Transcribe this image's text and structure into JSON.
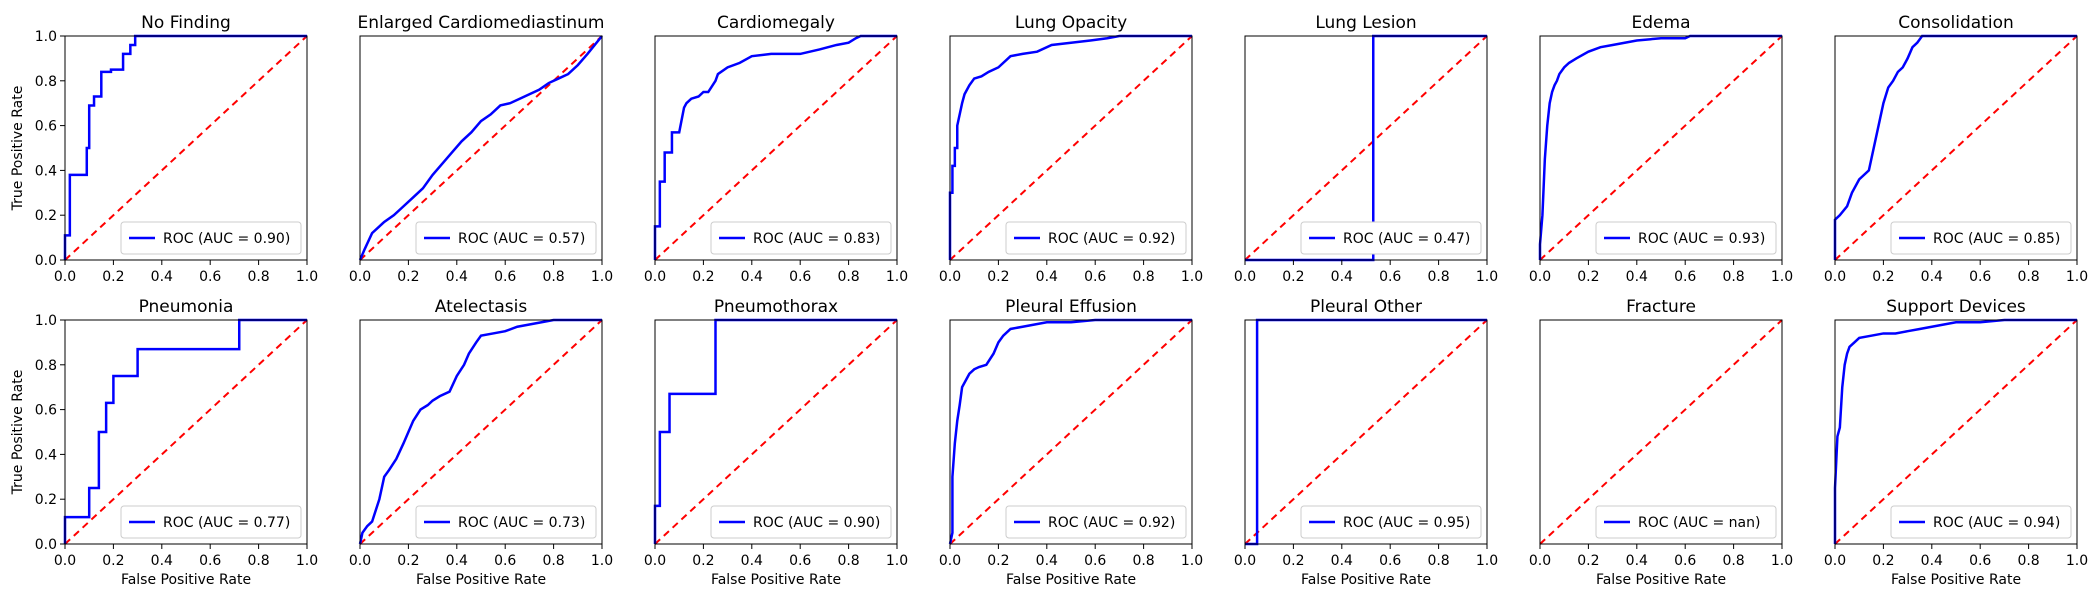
{
  "figure": {
    "x_label": "False Positive Rate",
    "y_label": "True Positive Rate",
    "x_ticks": [
      "0.0",
      "0.2",
      "0.4",
      "0.6",
      "0.8",
      "1.0"
    ],
    "y_ticks": [
      "0.0",
      "0.2",
      "0.4",
      "0.6",
      "0.8",
      "1.0"
    ],
    "roc_color": "#0000ff",
    "diagonal_color": "#ff0000",
    "legend_location": "lower right"
  },
  "chart_data": [
    {
      "type": "line",
      "title": "No Finding",
      "legend": "ROC (AUC = 0.90)",
      "xlim": [
        0,
        1
      ],
      "ylim": [
        0,
        1
      ],
      "x": [
        0,
        0,
        0.02,
        0.02,
        0.05,
        0.05,
        0.09,
        0.09,
        0.1,
        0.1,
        0.12,
        0.12,
        0.15,
        0.15,
        0.19,
        0.19,
        0.24,
        0.24,
        0.27,
        0.27,
        0.29,
        0.29,
        1.0
      ],
      "y": [
        0,
        0.11,
        0.11,
        0.38,
        0.38,
        0.38,
        0.38,
        0.5,
        0.5,
        0.69,
        0.69,
        0.73,
        0.73,
        0.84,
        0.84,
        0.85,
        0.85,
        0.92,
        0.92,
        0.96,
        0.96,
        1.0,
        1.0
      ]
    },
    {
      "type": "line",
      "title": "Enlarged Cardiomediastinum",
      "legend": "ROC (AUC = 0.57)",
      "xlim": [
        0,
        1
      ],
      "ylim": [
        0,
        1
      ],
      "x": [
        0,
        0.02,
        0.05,
        0.08,
        0.1,
        0.14,
        0.18,
        0.22,
        0.26,
        0.3,
        0.34,
        0.38,
        0.42,
        0.46,
        0.5,
        0.54,
        0.58,
        0.62,
        0.66,
        0.7,
        0.74,
        0.78,
        0.82,
        0.86,
        0.9,
        0.94,
        0.97,
        1.0
      ],
      "y": [
        0,
        0.05,
        0.12,
        0.15,
        0.17,
        0.2,
        0.24,
        0.28,
        0.32,
        0.38,
        0.43,
        0.48,
        0.53,
        0.57,
        0.62,
        0.65,
        0.69,
        0.7,
        0.72,
        0.74,
        0.76,
        0.79,
        0.81,
        0.83,
        0.87,
        0.92,
        0.96,
        1.0
      ]
    },
    {
      "type": "line",
      "title": "Cardiomegaly",
      "legend": "ROC (AUC = 0.83)",
      "xlim": [
        0,
        1
      ],
      "ylim": [
        0,
        1
      ],
      "x": [
        0,
        0,
        0.02,
        0.02,
        0.04,
        0.04,
        0.07,
        0.07,
        0.1,
        0.12,
        0.13,
        0.15,
        0.18,
        0.2,
        0.22,
        0.25,
        0.26,
        0.3,
        0.35,
        0.4,
        0.48,
        0.6,
        0.68,
        0.75,
        0.8,
        0.83,
        0.85,
        1.0
      ],
      "y": [
        0,
        0.15,
        0.15,
        0.35,
        0.35,
        0.48,
        0.48,
        0.57,
        0.57,
        0.68,
        0.7,
        0.72,
        0.73,
        0.75,
        0.75,
        0.8,
        0.83,
        0.86,
        0.88,
        0.91,
        0.92,
        0.92,
        0.94,
        0.96,
        0.97,
        0.99,
        1.0,
        1.0
      ]
    },
    {
      "type": "line",
      "title": "Lung Opacity",
      "legend": "ROC (AUC = 0.92)",
      "xlim": [
        0,
        1
      ],
      "ylim": [
        0,
        1
      ],
      "x": [
        0,
        0,
        0.01,
        0.01,
        0.02,
        0.02,
        0.03,
        0.03,
        0.05,
        0.06,
        0.08,
        0.1,
        0.13,
        0.16,
        0.2,
        0.25,
        0.3,
        0.36,
        0.42,
        0.5,
        0.58,
        0.65,
        0.7,
        1.0
      ],
      "y": [
        0,
        0.3,
        0.3,
        0.42,
        0.42,
        0.5,
        0.5,
        0.6,
        0.7,
        0.74,
        0.78,
        0.81,
        0.82,
        0.84,
        0.86,
        0.91,
        0.92,
        0.93,
        0.96,
        0.97,
        0.98,
        0.99,
        1.0,
        1.0
      ]
    },
    {
      "type": "line",
      "title": "Lung Lesion",
      "legend": "ROC (AUC = 0.47)",
      "xlim": [
        0,
        1
      ],
      "ylim": [
        0,
        1
      ],
      "x": [
        0,
        0.53,
        0.53,
        1.0
      ],
      "y": [
        0,
        0,
        1.0,
        1.0
      ]
    },
    {
      "type": "line",
      "title": "Edema",
      "legend": "ROC (AUC = 0.93)",
      "xlim": [
        0,
        1
      ],
      "ylim": [
        0,
        1
      ],
      "x": [
        0,
        0,
        0.01,
        0.02,
        0.03,
        0.04,
        0.05,
        0.06,
        0.07,
        0.08,
        0.1,
        0.12,
        0.15,
        0.2,
        0.25,
        0.3,
        0.35,
        0.4,
        0.5,
        0.6,
        0.62,
        1.0
      ],
      "y": [
        0,
        0.07,
        0.2,
        0.45,
        0.6,
        0.7,
        0.75,
        0.78,
        0.8,
        0.83,
        0.86,
        0.88,
        0.9,
        0.93,
        0.95,
        0.96,
        0.97,
        0.98,
        0.99,
        0.99,
        1.0,
        1.0
      ]
    },
    {
      "type": "line",
      "title": "Consolidation",
      "legend": "ROC (AUC = 0.85)",
      "xlim": [
        0,
        1
      ],
      "ylim": [
        0,
        1
      ],
      "x": [
        0,
        0,
        0.02,
        0.05,
        0.07,
        0.1,
        0.14,
        0.16,
        0.18,
        0.2,
        0.22,
        0.24,
        0.26,
        0.28,
        0.3,
        0.32,
        0.34,
        0.36,
        1.0
      ],
      "y": [
        0,
        0.18,
        0.2,
        0.24,
        0.3,
        0.36,
        0.4,
        0.5,
        0.6,
        0.7,
        0.77,
        0.8,
        0.84,
        0.86,
        0.9,
        0.95,
        0.97,
        1.0,
        1.0
      ]
    },
    {
      "type": "line",
      "title": "Pneumonia",
      "legend": "ROC (AUC = 0.77)",
      "xlim": [
        0,
        1
      ],
      "ylim": [
        0,
        1
      ],
      "x": [
        0,
        0,
        0.1,
        0.1,
        0.14,
        0.14,
        0.17,
        0.17,
        0.2,
        0.2,
        0.23,
        0.23,
        0.3,
        0.3,
        0.72,
        0.72,
        1.0
      ],
      "y": [
        0,
        0.12,
        0.12,
        0.25,
        0.25,
        0.5,
        0.5,
        0.63,
        0.63,
        0.75,
        0.75,
        0.75,
        0.75,
        0.87,
        0.87,
        1.0,
        1.0
      ]
    },
    {
      "type": "line",
      "title": "Atelectasis",
      "legend": "ROC (AUC = 0.73)",
      "xlim": [
        0,
        1
      ],
      "ylim": [
        0,
        1
      ],
      "x": [
        0,
        0.01,
        0.03,
        0.05,
        0.08,
        0.1,
        0.12,
        0.15,
        0.18,
        0.2,
        0.22,
        0.25,
        0.28,
        0.3,
        0.33,
        0.37,
        0.4,
        0.43,
        0.45,
        0.48,
        0.5,
        0.55,
        0.6,
        0.65,
        0.7,
        0.75,
        0.8,
        1.0
      ],
      "y": [
        0,
        0.05,
        0.08,
        0.1,
        0.2,
        0.3,
        0.33,
        0.38,
        0.45,
        0.5,
        0.55,
        0.6,
        0.62,
        0.64,
        0.66,
        0.68,
        0.75,
        0.8,
        0.85,
        0.9,
        0.93,
        0.94,
        0.95,
        0.97,
        0.98,
        0.99,
        1.0,
        1.0
      ]
    },
    {
      "type": "line",
      "title": "Pneumothorax",
      "legend": "ROC (AUC = 0.90)",
      "xlim": [
        0,
        1
      ],
      "ylim": [
        0,
        1
      ],
      "x": [
        0,
        0,
        0.02,
        0.02,
        0.06,
        0.06,
        0.25,
        0.25,
        1.0
      ],
      "y": [
        0,
        0.17,
        0.17,
        0.5,
        0.5,
        0.67,
        0.67,
        1.0,
        1.0
      ]
    },
    {
      "type": "line",
      "title": "Pleural Effusion",
      "legend": "ROC (AUC = 0.92)",
      "xlim": [
        0,
        1
      ],
      "ylim": [
        0,
        1
      ],
      "x": [
        0,
        0.01,
        0.01,
        0.02,
        0.03,
        0.04,
        0.05,
        0.07,
        0.08,
        0.1,
        0.12,
        0.15,
        0.18,
        0.2,
        0.22,
        0.25,
        0.3,
        0.35,
        0.4,
        0.5,
        0.6,
        0.7,
        1.0
      ],
      "y": [
        0,
        0.05,
        0.3,
        0.45,
        0.55,
        0.62,
        0.7,
        0.74,
        0.76,
        0.78,
        0.79,
        0.8,
        0.85,
        0.9,
        0.93,
        0.96,
        0.97,
        0.98,
        0.99,
        0.99,
        1.0,
        1.0,
        1.0
      ]
    },
    {
      "type": "line",
      "title": "Pleural Other",
      "legend": "ROC (AUC = 0.95)",
      "xlim": [
        0,
        1
      ],
      "ylim": [
        0,
        1
      ],
      "x": [
        0,
        0.05,
        0.05,
        1.0
      ],
      "y": [
        0,
        0,
        1.0,
        1.0
      ]
    },
    {
      "type": "line",
      "title": "Fracture",
      "legend": "ROC (AUC = nan)",
      "xlim": [
        0,
        1
      ],
      "ylim": [
        0,
        1
      ],
      "x": [],
      "y": []
    },
    {
      "type": "line",
      "title": "Support Devices",
      "legend": "ROC (AUC = 0.94)",
      "xlim": [
        0,
        1
      ],
      "ylim": [
        0,
        1
      ],
      "x": [
        0,
        0,
        0.01,
        0.02,
        0.03,
        0.04,
        0.05,
        0.06,
        0.08,
        0.1,
        0.15,
        0.2,
        0.25,
        0.3,
        0.35,
        0.4,
        0.45,
        0.5,
        0.6,
        0.7,
        1.0
      ],
      "y": [
        0,
        0.25,
        0.48,
        0.52,
        0.7,
        0.8,
        0.85,
        0.88,
        0.9,
        0.92,
        0.93,
        0.94,
        0.94,
        0.95,
        0.96,
        0.97,
        0.98,
        0.99,
        0.99,
        1.0,
        1.0
      ]
    }
  ]
}
